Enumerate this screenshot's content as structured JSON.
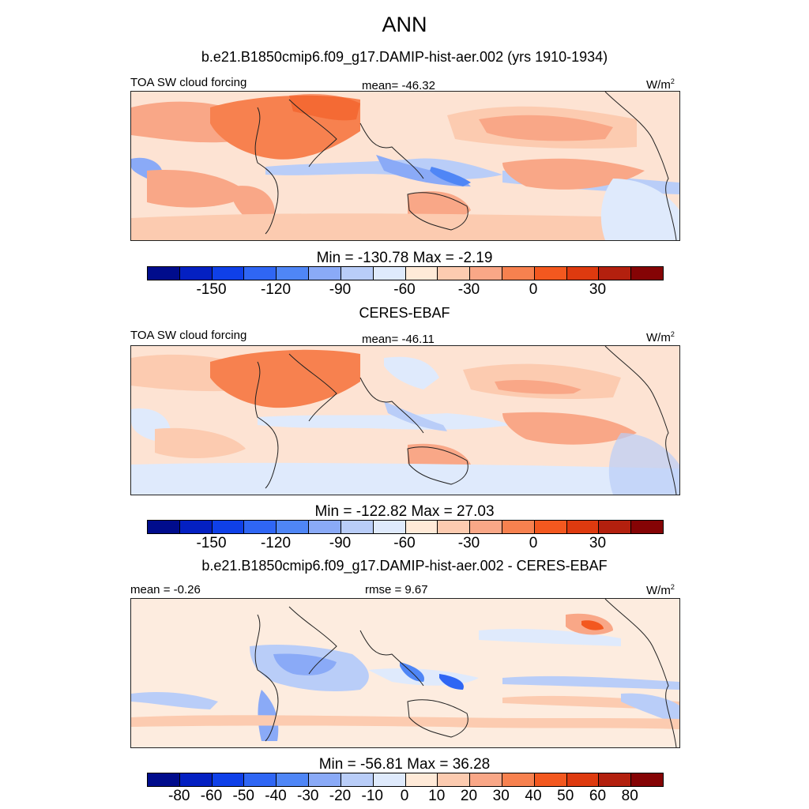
{
  "title": "ANN",
  "panels": [
    {
      "id": "model",
      "title": "b.e21.B1850cmip6.f09_g17.DAMIP-hist-aer.002 (yrs 1910-1934)",
      "left_label": "TOA SW cloud forcing",
      "center_label": "mean= -46.32",
      "units": "W/m",
      "units_sup": "2",
      "stats": "Min = -130.78 Max =  -2.19",
      "colorbar": {
        "colors": [
          "#000c8c",
          "#0420c2",
          "#0f40e8",
          "#2f66f4",
          "#4f86f6",
          "#8aaaf7",
          "#b9cdf8",
          "#dfeafc",
          "#ffead8",
          "#fccbb0",
          "#f9a787",
          "#f7814f",
          "#f3581f",
          "#de3a0f",
          "#b3200e",
          "#850405"
        ],
        "ticks": [
          "-150",
          "-120",
          "-90",
          "-60",
          "-30",
          "0",
          "30"
        ]
      }
    },
    {
      "id": "obs",
      "title": "CERES-EBAF",
      "left_label": "TOA SW cloud forcing",
      "center_label": "mean= -46.11",
      "units": "W/m",
      "units_sup": "2",
      "stats": "Min = -122.82 Max =  27.03",
      "colorbar": {
        "colors": [
          "#000c8c",
          "#0420c2",
          "#0f40e8",
          "#2f66f4",
          "#4f86f6",
          "#8aaaf7",
          "#b9cdf8",
          "#dfeafc",
          "#ffead8",
          "#fccbb0",
          "#f9a787",
          "#f7814f",
          "#f3581f",
          "#de3a0f",
          "#b3200e",
          "#850405"
        ],
        "ticks": [
          "-150",
          "-120",
          "-90",
          "-60",
          "-30",
          "0",
          "30"
        ]
      }
    },
    {
      "id": "diff",
      "title": "b.e21.B1850cmip6.f09_g17.DAMIP-hist-aer.002 - CERES-EBAF",
      "left_label": "mean =  -0.26",
      "center_label": "rmse =   9.67",
      "units": "W/m",
      "units_sup": "2",
      "stats": "Min = -56.81 Max =  36.28",
      "colorbar": {
        "colors": [
          "#000c8c",
          "#0420c2",
          "#0f40e8",
          "#2f66f4",
          "#4f86f6",
          "#8aaaf7",
          "#b9cdf8",
          "#dfeafc",
          "#ffead8",
          "#fccbb0",
          "#f9a787",
          "#f7814f",
          "#f3581f",
          "#de3a0f",
          "#b3200e",
          "#850405"
        ],
        "ticks": [
          "-80",
          "-60",
          "-50",
          "-40",
          "-30",
          "-20",
          "-10",
          "0",
          "10",
          "20",
          "30",
          "40",
          "50",
          "60",
          "80"
        ]
      }
    }
  ]
}
